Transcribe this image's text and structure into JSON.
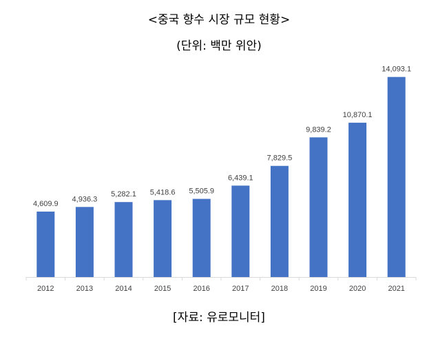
{
  "header": {
    "title": "<중국 향수 시장 규모 현황>",
    "subtitle": "(단위: 백만 위안)"
  },
  "footer": {
    "source": "[자료: 유로모니터]"
  },
  "chart_data": {
    "type": "bar",
    "categories": [
      "2012",
      "2013",
      "2014",
      "2015",
      "2016",
      "2017",
      "2018",
      "2019",
      "2020",
      "2021"
    ],
    "values": [
      4609.9,
      4936.3,
      5282.1,
      5418.6,
      5505.9,
      6439.1,
      7829.5,
      9839.2,
      10870.1,
      14093.1
    ],
    "data_labels": [
      "4,609.9",
      "4,936.3",
      "5,282.1",
      "5,418.6",
      "5,505.9",
      "6,439.1",
      "7,829.5",
      "9,839.2",
      "10,870.1",
      "14,093.1"
    ],
    "title": "<중국 향수 시장 규모 현황>",
    "subtitle": "(단위: 백만 위안)",
    "xlabel": "",
    "ylabel": "",
    "ylim": [
      0,
      15000
    ],
    "grid": false,
    "legend": "none",
    "bar_color": "#4472C4",
    "axis_color": "#D9D9D9"
  }
}
